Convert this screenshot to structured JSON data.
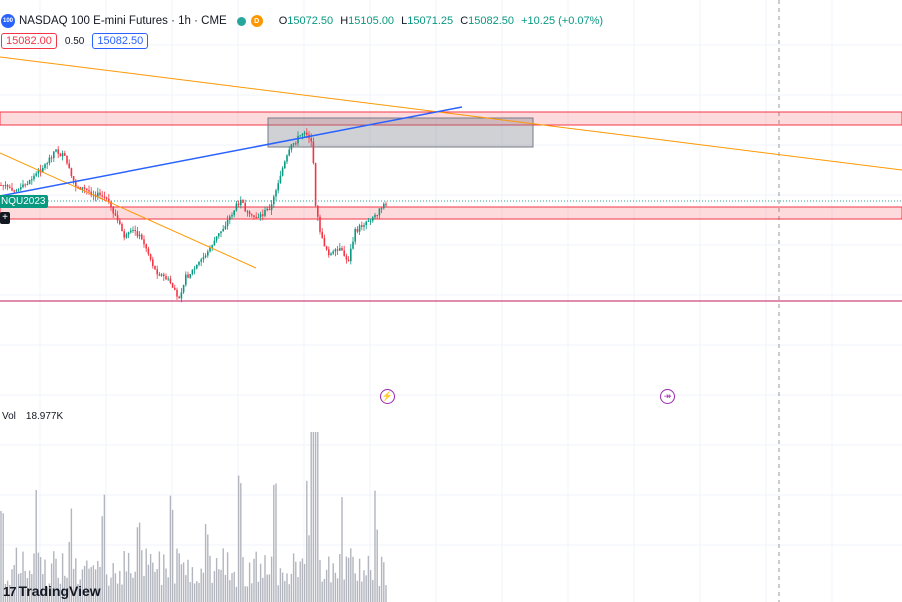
{
  "header": {
    "logo_text": "100",
    "title": "NASDAQ 100 E-mini Futures · 1h · CME",
    "status_dot_color": "#26a69a",
    "delay_badge": "D",
    "ohlc": {
      "o_label": "O",
      "o_value": "15072.50",
      "h_label": "H",
      "h_value": "15105.00",
      "l_label": "L",
      "l_value": "15071.25",
      "c_label": "C",
      "c_value": "15082.50",
      "change": "+10.25 (+0.07%)"
    }
  },
  "trade": {
    "sell_price": "15082.00",
    "spread": "0.50",
    "buy_price": "15082.50"
  },
  "symbol_tag": "NQU2023",
  "plus_icon": "+",
  "volume": {
    "label": "Vol",
    "value": "18.977K"
  },
  "event_icons": {
    "first": "⚡",
    "second": "↠"
  },
  "branding": {
    "mark": "17",
    "name": "TradingView"
  },
  "colors": {
    "up": "#089981",
    "down": "#f23645",
    "trendline_blue": "#2962ff",
    "trendline_orange": "#ff9800",
    "zone_red": "#f23645",
    "support_line": "#c2185b"
  },
  "chart_data": {
    "type": "candlestick",
    "instrument": "NQU2023",
    "interval": "1h",
    "last_price": 15082.5,
    "drawings": [
      "trendline-blue",
      "trendline-orange-long",
      "trendline-orange-short",
      "resistance-zone",
      "current-price-zone",
      "gray-rectangle",
      "support-line",
      "vertical-dashed-line"
    ]
  }
}
